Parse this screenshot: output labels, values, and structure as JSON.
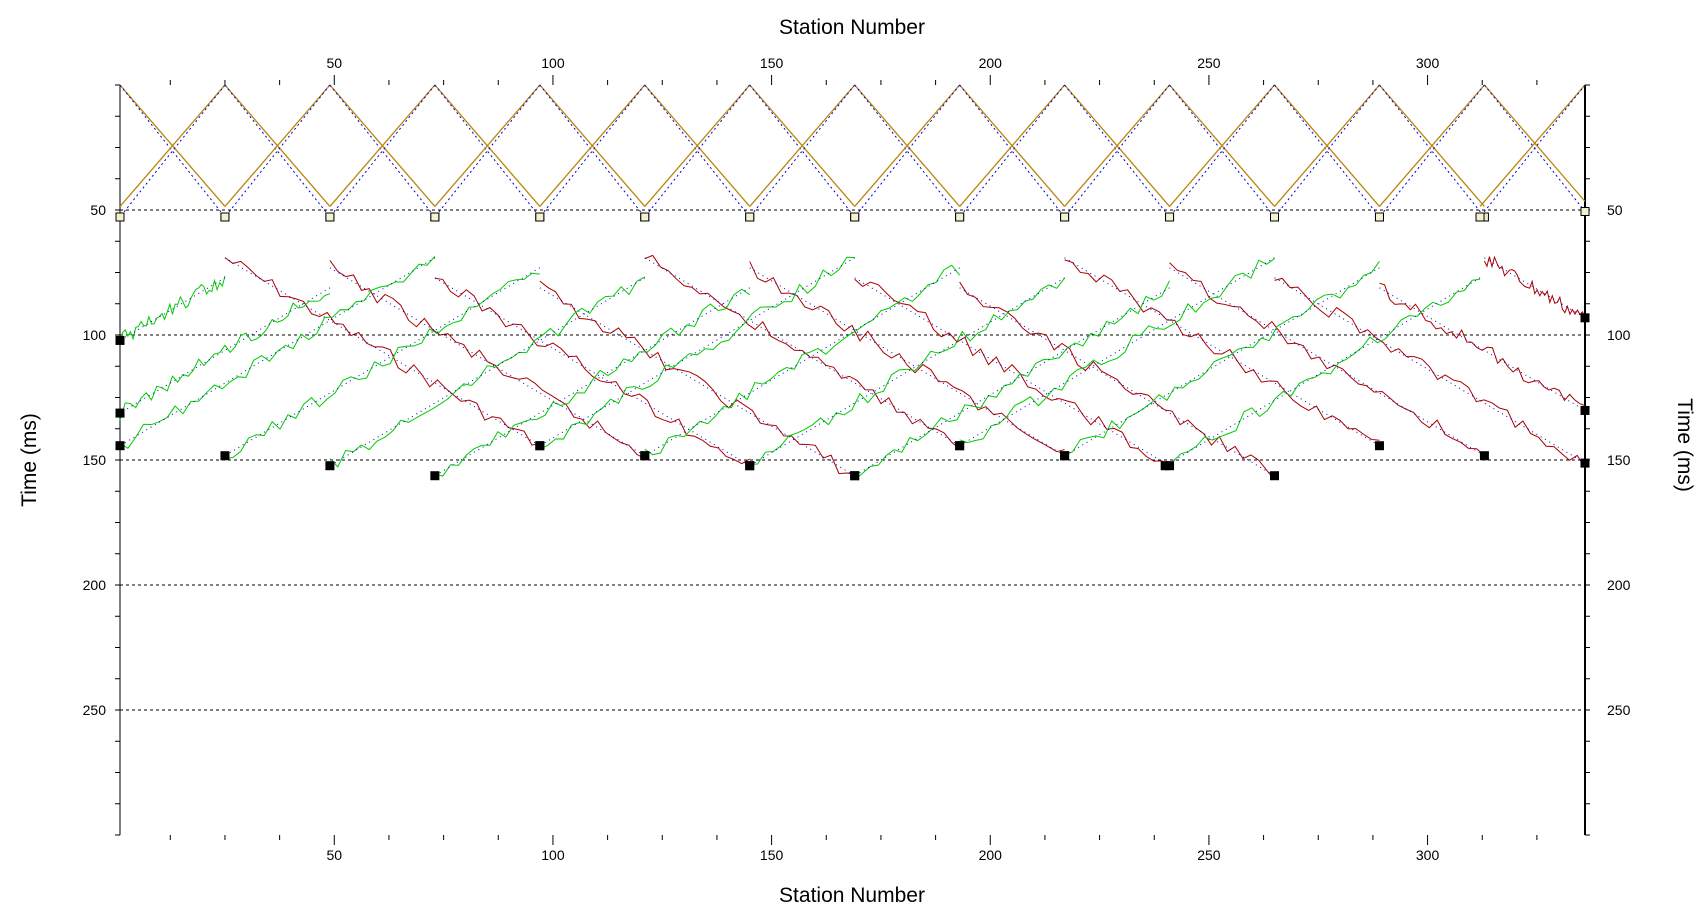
{
  "chart_data": {
    "type": "line",
    "title": "",
    "xlabel": "Station Number",
    "ylabel": "Time (ms)",
    "xlim": [
      1,
      336
    ],
    "ylim": [
      0,
      300
    ],
    "y_inverted": true,
    "x_ticks": [
      50,
      100,
      150,
      200,
      250,
      300
    ],
    "y_ticks": [
      50,
      100,
      150,
      200,
      250
    ],
    "shots": [
      1,
      25,
      49,
      73,
      97,
      121,
      145,
      169,
      193,
      217,
      241,
      265,
      289,
      313,
      336
    ],
    "direct_slope_ms_per_station": 2.2,
    "refractor_slope_ms_per_station": 0.58,
    "series": [
      {
        "name": "first-break picks",
        "color": "#b8860b"
      },
      {
        "name": "model traveltimes",
        "color": "#0000cc"
      },
      {
        "name": "forward picks",
        "color": "#aa0000"
      },
      {
        "name": "reverse picks",
        "color": "#00cc00"
      },
      {
        "name": "pick markers",
        "color": "#000000"
      }
    ]
  }
}
